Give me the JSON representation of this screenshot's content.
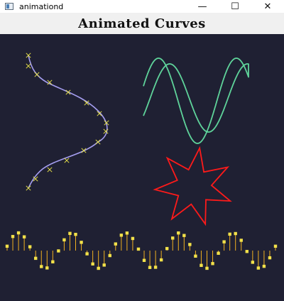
{
  "window": {
    "title": "animationd",
    "icon": "app-window-icon",
    "controls": {
      "minimize": "—",
      "maximize": "☐",
      "close": "✕"
    }
  },
  "heading": "Animated Curves",
  "colors": {
    "background": "#1f2033",
    "heading_bar": "#f0f0f0",
    "spline": "#a59ef0",
    "control_points": "#e6e04a",
    "lissajous": "#5fd49b",
    "star": "#ff1a1a",
    "stems": "#f0b020",
    "markers": "#f2e14a"
  },
  "scene": {
    "spline": {
      "kind": "S-curve with x markers",
      "marker_count": 15
    },
    "lissajous": {
      "kind": "parametric curve"
    },
    "star": {
      "points": 7
    },
    "stem_wave": {
      "kind": "sine stem plot",
      "periods": 5,
      "samples": 48
    }
  }
}
